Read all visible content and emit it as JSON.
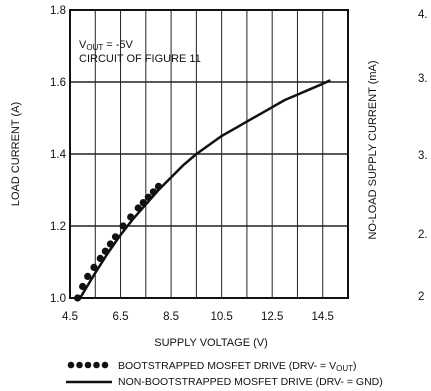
{
  "chart_data": {
    "type": "line",
    "xlabel": "SUPPLY VOLTAGE (V)",
    "ylabel": "LOAD CURRENT (A)",
    "right_ylabel": "NO-LOAD SUPPLY CURRENT (mA)",
    "xlim": [
      4.5,
      15.5
    ],
    "ylim": [
      1.0,
      1.8
    ],
    "x_ticks": [
      "4.5",
      "6.5",
      "8.5",
      "10.5",
      "12.5",
      "14.5"
    ],
    "y_ticks": [
      "1.0",
      "1.2",
      "1.4",
      "1.6",
      "1.8"
    ],
    "right_partial_ticks": [
      "4.",
      "3.",
      "3.",
      "2.",
      "2"
    ],
    "grid": true,
    "annotations": {
      "vout_main": "V",
      "vout_sub": "OUT",
      "vout_value": " = -5V",
      "circuit": "CIRCUIT OF FIGURE 11"
    },
    "series": [
      {
        "name": "BOOTSTRAPPED MOSFET DRIVE (DRV- = VOUT)",
        "style": "dotted",
        "color": "#111111",
        "x": [
          4.8,
          5.0,
          5.2,
          5.45,
          5.7,
          5.9,
          6.1,
          6.3,
          6.6,
          6.9,
          7.2,
          7.4,
          7.6,
          7.8,
          8.0
        ],
        "y": [
          1.0,
          1.032,
          1.06,
          1.085,
          1.11,
          1.13,
          1.15,
          1.17,
          1.2,
          1.225,
          1.25,
          1.265,
          1.28,
          1.295,
          1.31
        ]
      },
      {
        "name": "NON-BOOTSTRAPPED MOSFET DRIVE (DRV- = GND)",
        "style": "solid",
        "color": "#111111",
        "x": [
          4.9,
          5.5,
          6.0,
          6.5,
          7.0,
          7.5,
          8.0,
          8.5,
          9.0,
          9.5,
          10.0,
          10.5,
          11.0,
          11.5,
          12.0,
          12.5,
          13.0,
          13.5,
          14.0,
          14.5,
          14.8
        ],
        "y": [
          1.0,
          1.07,
          1.125,
          1.175,
          1.22,
          1.26,
          1.3,
          1.335,
          1.37,
          1.4,
          1.425,
          1.45,
          1.47,
          1.49,
          1.51,
          1.53,
          1.55,
          1.565,
          1.58,
          1.595,
          1.605
        ]
      }
    ],
    "legend": [
      {
        "style": "dotted",
        "text_main": "BOOTSTRAPPED MOSFET DRIVE (DRV- = V",
        "text_sub": "OUT",
        "text_end": ")"
      },
      {
        "style": "solid",
        "text_main": "NON-BOOTSTRAPPED MOSFET DRIVE (DRV- = GND)"
      }
    ]
  }
}
